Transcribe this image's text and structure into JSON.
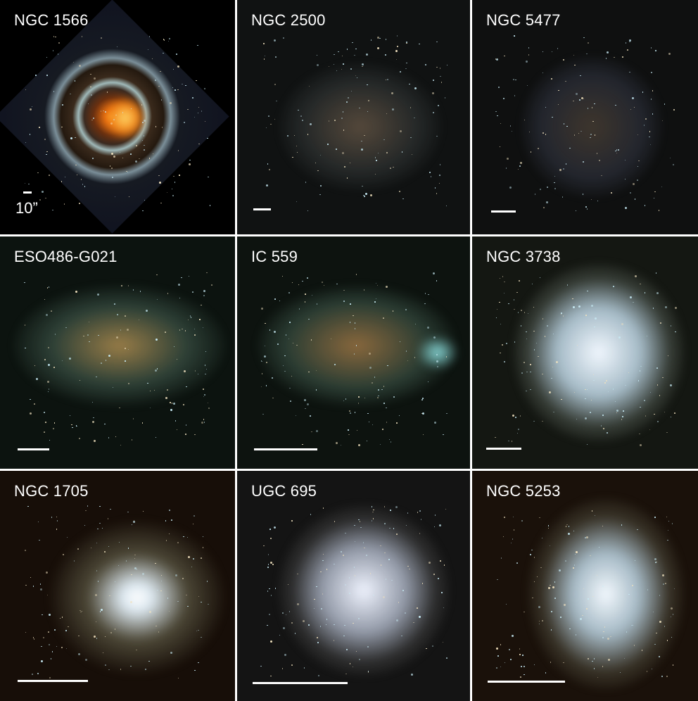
{
  "panels": [
    {
      "label": "NGC 1566"
    },
    {
      "label": "NGC 2500"
    },
    {
      "label": "NGC 5477"
    },
    {
      "label": "ESO486-G021"
    },
    {
      "label": "IC 559"
    },
    {
      "label": "NGC 3738"
    },
    {
      "label": "NGC 1705"
    },
    {
      "label": "UGC 695"
    },
    {
      "label": "NGC 5253"
    }
  ],
  "scale_label": "10”"
}
